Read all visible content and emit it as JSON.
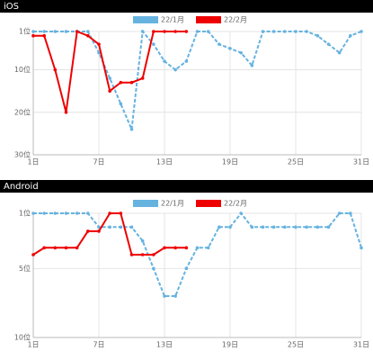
{
  "chart_data": [
    {
      "type": "line",
      "title": "iOS",
      "x": [
        1,
        2,
        3,
        4,
        5,
        6,
        7,
        8,
        9,
        10,
        11,
        12,
        13,
        14,
        15,
        16,
        17,
        18,
        19,
        20,
        21,
        22,
        23,
        24,
        25,
        26,
        27,
        28,
        29,
        30,
        31
      ],
      "series": [
        {
          "name": "22/1月",
          "color": "#66b3e0",
          "dashed": true,
          "values": [
            1,
            1,
            1,
            1,
            1,
            1,
            6,
            12,
            18,
            24,
            1,
            4,
            8,
            10,
            8,
            1,
            1,
            4,
            5,
            6,
            9,
            1,
            1,
            1,
            1,
            1,
            2,
            4,
            6,
            2,
            1
          ]
        },
        {
          "name": "22/2月",
          "color": "#ee0000",
          "dashed": false,
          "values": [
            2,
            2,
            10,
            20,
            1,
            2,
            4,
            15,
            13,
            13,
            12,
            1,
            1,
            1,
            1,
            null,
            null,
            null,
            null,
            null,
            null,
            null,
            null,
            null,
            null,
            null,
            null,
            null,
            null,
            null,
            null
          ]
        }
      ],
      "xlim": [
        1,
        31
      ],
      "xticks": [
        {
          "value": 1,
          "label": "1日"
        },
        {
          "value": 7,
          "label": "7日"
        },
        {
          "value": 13,
          "label": "13日"
        },
        {
          "value": 19,
          "label": "19日"
        },
        {
          "value": 25,
          "label": "25日"
        },
        {
          "value": 31,
          "label": "31日"
        }
      ],
      "ylim": [
        30,
        1
      ],
      "yticks": [
        {
          "value": 1,
          "label": "1位"
        },
        {
          "value": 10,
          "label": "10位"
        },
        {
          "value": 20,
          "label": "20位"
        },
        {
          "value": 30,
          "label": "30位"
        }
      ],
      "grid": true
    },
    {
      "type": "line",
      "title": "Android",
      "x": [
        1,
        2,
        3,
        4,
        5,
        6,
        7,
        8,
        9,
        10,
        11,
        12,
        13,
        14,
        15,
        16,
        17,
        18,
        19,
        20,
        21,
        22,
        23,
        24,
        25,
        26,
        27,
        28,
        29,
        30,
        31
      ],
      "series": [
        {
          "name": "22/1月",
          "color": "#66b3e0",
          "dashed": true,
          "values": [
            1,
            1,
            1,
            1,
            1,
            1,
            2,
            2,
            2,
            2,
            3,
            5,
            7,
            7,
            5,
            3.5,
            3.5,
            2,
            2,
            1,
            2,
            2,
            2,
            2,
            2,
            2,
            2,
            2,
            1,
            1,
            3.5
          ]
        },
        {
          "name": "22/2月",
          "color": "#ee0000",
          "dashed": false,
          "values": [
            4,
            3.5,
            3.5,
            3.5,
            3.5,
            2.3,
            2.3,
            1,
            1,
            4,
            4,
            4,
            3.5,
            3.5,
            3.5,
            null,
            null,
            null,
            null,
            null,
            null,
            null,
            null,
            null,
            null,
            null,
            null,
            null,
            null,
            null,
            null
          ]
        }
      ],
      "xlim": [
        1,
        31
      ],
      "xticks": [
        {
          "value": 1,
          "label": "1日"
        },
        {
          "value": 7,
          "label": "7日"
        },
        {
          "value": 13,
          "label": "13日"
        },
        {
          "value": 19,
          "label": "19日"
        },
        {
          "value": 25,
          "label": "25日"
        },
        {
          "value": 31,
          "label": "31日"
        }
      ],
      "ylim": [
        10,
        1
      ],
      "yticks": [
        {
          "value": 1,
          "label": "1位"
        },
        {
          "value": 5,
          "label": "5位"
        },
        {
          "value": 10,
          "label": "10位"
        }
      ],
      "grid": true
    }
  ]
}
